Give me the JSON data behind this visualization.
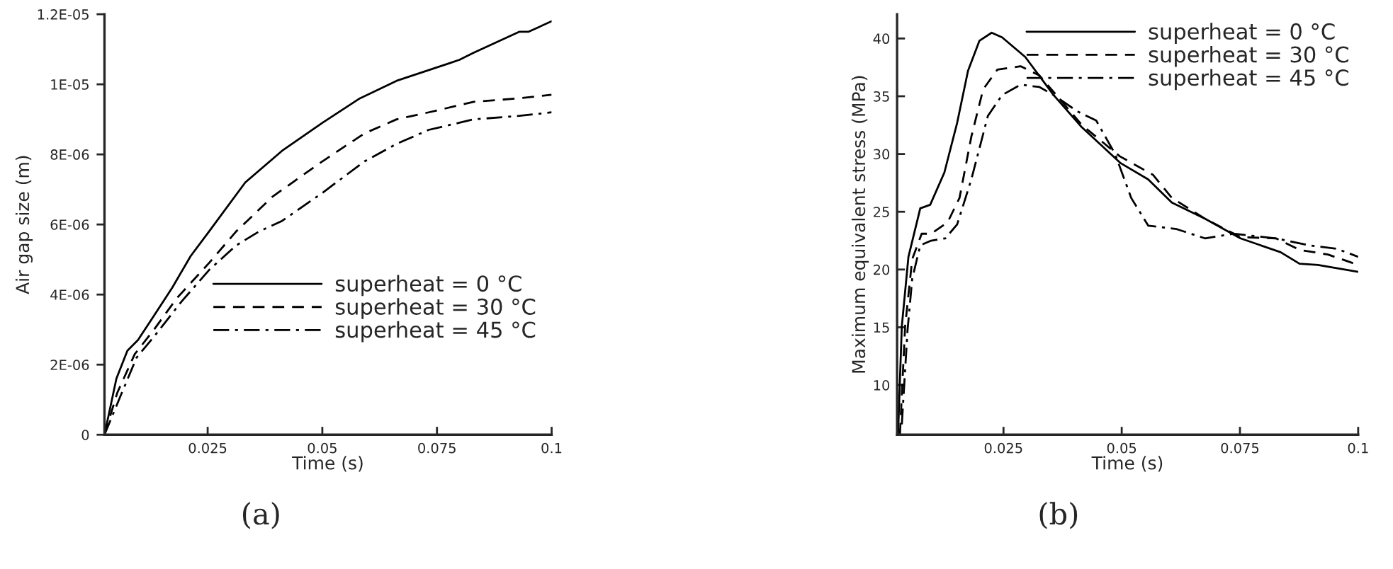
{
  "chart_data": [
    {
      "type": "line",
      "xlabel": "Time (s)",
      "ylabel": "Air gap size (m)",
      "annotations": [
        "(a)"
      ],
      "legend": "right",
      "grid": false,
      "marker": "none",
      "xlim": [
        0.0025,
        0.1
      ],
      "xticks": [
        0.025,
        0.05,
        0.075,
        0.1
      ],
      "ylim": [
        0,
        1.2e-05
      ],
      "yticks": [
        {
          "value": 0,
          "label": "0"
        },
        {
          "value": 2e-06,
          "label": "2E-06"
        },
        {
          "value": 4e-06,
          "label": "4E-06"
        },
        {
          "value": 6e-06,
          "label": "6E-06"
        },
        {
          "value": 8e-06,
          "label": "8E-06"
        },
        {
          "value": 1e-05,
          "label": "1E-05"
        },
        {
          "value": 1.2e-05,
          "label": "1.2E-05"
        }
      ],
      "series": [
        {
          "name": "superheat = 0 °C",
          "color": "#000000",
          "line_style": "solid",
          "x": [
            0.0025,
            0.0051,
            0.0075,
            0.0098,
            0.0133,
            0.0173,
            0.0213,
            0.0253,
            0.0332,
            0.0412,
            0.05,
            0.0582,
            0.0662,
            0.0777,
            0.0799,
            0.083,
            0.093,
            0.095,
            0.1
          ],
          "values": [
            0,
            1.6e-06,
            2.4e-06,
            2.7e-06,
            3.4e-06,
            4.2e-06,
            5.1e-06,
            5.8e-06,
            7.2e-06,
            8.1e-06,
            8.9e-06,
            9.6e-06,
            1.01e-05,
            1.06e-05,
            1.07e-05,
            1.09e-05,
            1.15e-05,
            1.15e-05,
            1.18e-05
          ]
        },
        {
          "name": "superheat = 30 °C",
          "color": "#000000",
          "line_style": "dashed",
          "x": [
            0.0025,
            0.0053,
            0.0091,
            0.0133,
            0.0183,
            0.0253,
            0.0312,
            0.0392,
            0.05,
            0.0592,
            0.0662,
            0.0732,
            0.083,
            0.093,
            0.1
          ],
          "values": [
            0,
            1.2e-06,
            2.3e-06,
            3e-06,
            3.9e-06,
            4.9e-06,
            5.8e-06,
            6.8e-06,
            7.8e-06,
            8.6e-06,
            9e-06,
            9.2e-06,
            9.5e-06,
            9.6e-06,
            9.7e-06
          ]
        },
        {
          "name": "superheat = 45 °C",
          "color": "#000000",
          "line_style": "dashdot",
          "x": [
            0.0025,
            0.0063,
            0.0095,
            0.0133,
            0.0193,
            0.0253,
            0.0312,
            0.0362,
            0.0412,
            0.05,
            0.0592,
            0.0662,
            0.0732,
            0.083,
            0.093,
            0.1
          ],
          "values": [
            0,
            1.2e-06,
            2.2e-06,
            2.8e-06,
            3.8e-06,
            4.7e-06,
            5.4e-06,
            5.8e-06,
            6.1e-06,
            6.9e-06,
            7.8e-06,
            8.3e-06,
            8.7e-06,
            9e-06,
            9.1e-06,
            9.2e-06
          ]
        }
      ]
    },
    {
      "type": "line",
      "xlabel": "Time (s)",
      "ylabel": "Maximum equivalent stress (MPa)",
      "annotations": [
        "(b)"
      ],
      "legend": "top right",
      "grid": false,
      "marker": "none",
      "xlim": [
        0.0025,
        0.1
      ],
      "xticks": [
        0.025,
        0.05,
        0.075,
        0.1
      ],
      "ylim": [
        5.7,
        42.1
      ],
      "yticks": [
        10,
        15,
        20,
        25,
        30,
        35,
        40
      ],
      "series": [
        {
          "name": "superheat = 0 °C",
          "color": "#000000",
          "line_style": "solid",
          "x": [
            0.0027,
            0.0035,
            0.0049,
            0.0074,
            0.0095,
            0.0125,
            0.0152,
            0.0175,
            0.0199,
            0.0225,
            0.0247,
            0.0296,
            0.0356,
            0.0416,
            0.0498,
            0.0556,
            0.0606,
            0.0676,
            0.0751,
            0.0836,
            0.0876,
            0.0915,
            0.1
          ],
          "values": [
            5.7,
            15.1,
            21.1,
            25.3,
            25.6,
            28.4,
            32.7,
            37.2,
            39.8,
            40.5,
            40.1,
            38.4,
            35.1,
            32.3,
            29.2,
            27.8,
            25.8,
            24.4,
            22.7,
            21.5,
            20.5,
            20.4,
            19.8
          ]
        },
        {
          "name": "superheat = 30 °C",
          "color": "#000000",
          "line_style": "dashed",
          "x": [
            0.0031,
            0.0042,
            0.0057,
            0.0077,
            0.0097,
            0.0132,
            0.0157,
            0.0182,
            0.0207,
            0.0237,
            0.0286,
            0.0326,
            0.0366,
            0.0416,
            0.0496,
            0.0566,
            0.0606,
            0.0676,
            0.0751,
            0.0826,
            0.0876,
            0.0936,
            0.1
          ],
          "values": [
            5.7,
            15.1,
            20.9,
            23.1,
            23.1,
            24.1,
            26.2,
            31.5,
            35.6,
            37.3,
            37.6,
            36.8,
            34.9,
            32.5,
            29.8,
            28.2,
            26.2,
            24.4,
            22.8,
            22.7,
            21.7,
            21.3,
            20.4
          ]
        },
        {
          "name": "superheat = 45 °C",
          "color": "#000000",
          "line_style": "dashdot",
          "x": [
            0.0035,
            0.0047,
            0.0057,
            0.0074,
            0.0097,
            0.0127,
            0.0152,
            0.0182,
            0.0217,
            0.0247,
            0.0286,
            0.0326,
            0.0356,
            0.0406,
            0.0446,
            0.0486,
            0.052,
            0.0556,
            0.0616,
            0.0676,
            0.0736,
            0.0826,
            0.0896,
            0.0955,
            0.1
          ],
          "values": [
            6.6,
            14.7,
            19.2,
            22.1,
            22.5,
            22.7,
            23.9,
            27.8,
            33.3,
            35.1,
            36.0,
            35.8,
            35.1,
            33.7,
            32.9,
            30.0,
            26.2,
            23.8,
            23.5,
            22.7,
            23.1,
            22.7,
            22.1,
            21.8,
            21.1
          ]
        }
      ]
    }
  ]
}
